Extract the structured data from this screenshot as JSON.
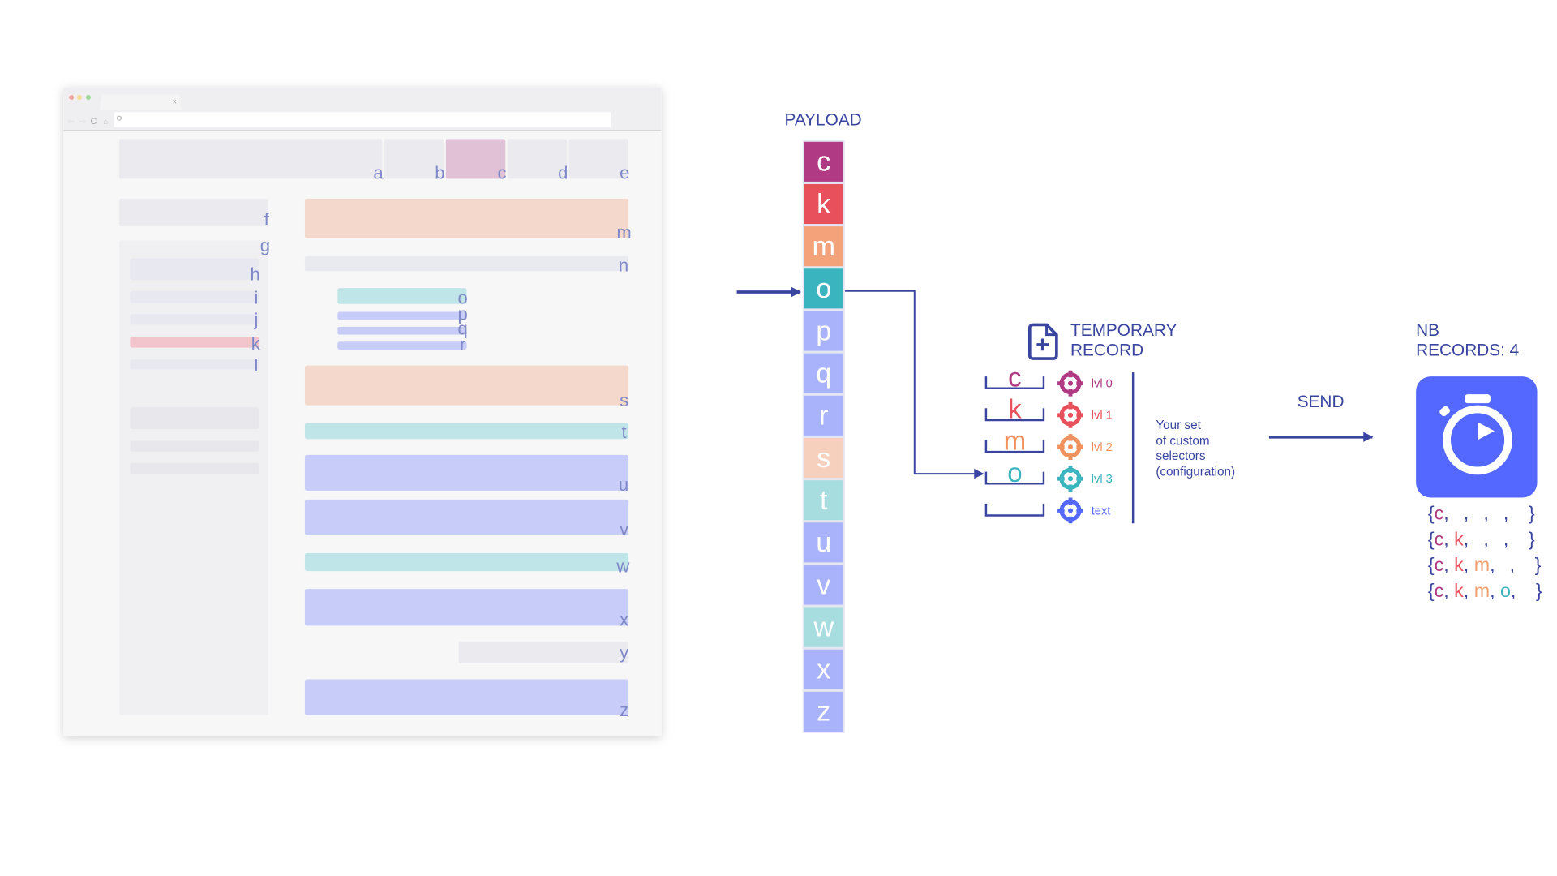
{
  "browser_mockup": {
    "tab_close": "x",
    "labels": {
      "a": "a",
      "b": "b",
      "c": "c",
      "d": "d",
      "e": "e",
      "f": "f",
      "g": "g",
      "h": "h",
      "i": "i",
      "j": "j",
      "k": "k",
      "l": "l",
      "m": "m",
      "n": "n",
      "o": "o",
      "p": "p",
      "q": "q",
      "r": "r",
      "s": "s",
      "t": "t",
      "u": "u",
      "v": "v",
      "w": "w",
      "x": "x",
      "y": "y",
      "z": "z"
    }
  },
  "payload": {
    "title": "PAYLOAD",
    "items": [
      "c",
      "k",
      "m",
      "o",
      "p",
      "q",
      "r",
      "s",
      "t",
      "u",
      "v",
      "w",
      "x",
      "z"
    ],
    "colors": [
      "#b03a84",
      "#e8505b",
      "#f4a27a",
      "#3ab4be",
      "#a9b3fb",
      "#a9b3fb",
      "#a9b3fb",
      "#f7cfbd",
      "#a8dde0",
      "#a9b3fb",
      "#a9b3fb",
      "#a8dde0",
      "#a9b3fb",
      "#a9b3fb"
    ]
  },
  "temporary_record": {
    "title_line1": "TEMPORARY",
    "title_line2": "RECORD",
    "icon": "file-plus-icon",
    "slots": [
      {
        "value": "c",
        "level": "lvl 0",
        "color": "#b03a84"
      },
      {
        "value": "k",
        "level": "lvl 1",
        "color": "#e8505b"
      },
      {
        "value": "m",
        "level": "lvl 2",
        "color": "#f0915e"
      },
      {
        "value": "o",
        "level": "lvl 3",
        "color": "#3ab4be"
      },
      {
        "value": "",
        "level": "text",
        "color": "#5468ff"
      }
    ],
    "note": [
      "Your set",
      "of custom",
      "selectors",
      "(configuration)"
    ]
  },
  "send": {
    "label": "SEND"
  },
  "records": {
    "title_line1": "NB",
    "title_line2": "RECORDS: 4",
    "icon": "stopwatch-icon",
    "accent": "#5468ff",
    "lines": [
      [
        "c",
        "",
        "",
        "",
        ""
      ],
      [
        "c",
        "k",
        "",
        "",
        ""
      ],
      [
        "c",
        "k",
        "m",
        "",
        ""
      ],
      [
        "c",
        "k",
        "m",
        "o",
        ""
      ]
    ]
  }
}
